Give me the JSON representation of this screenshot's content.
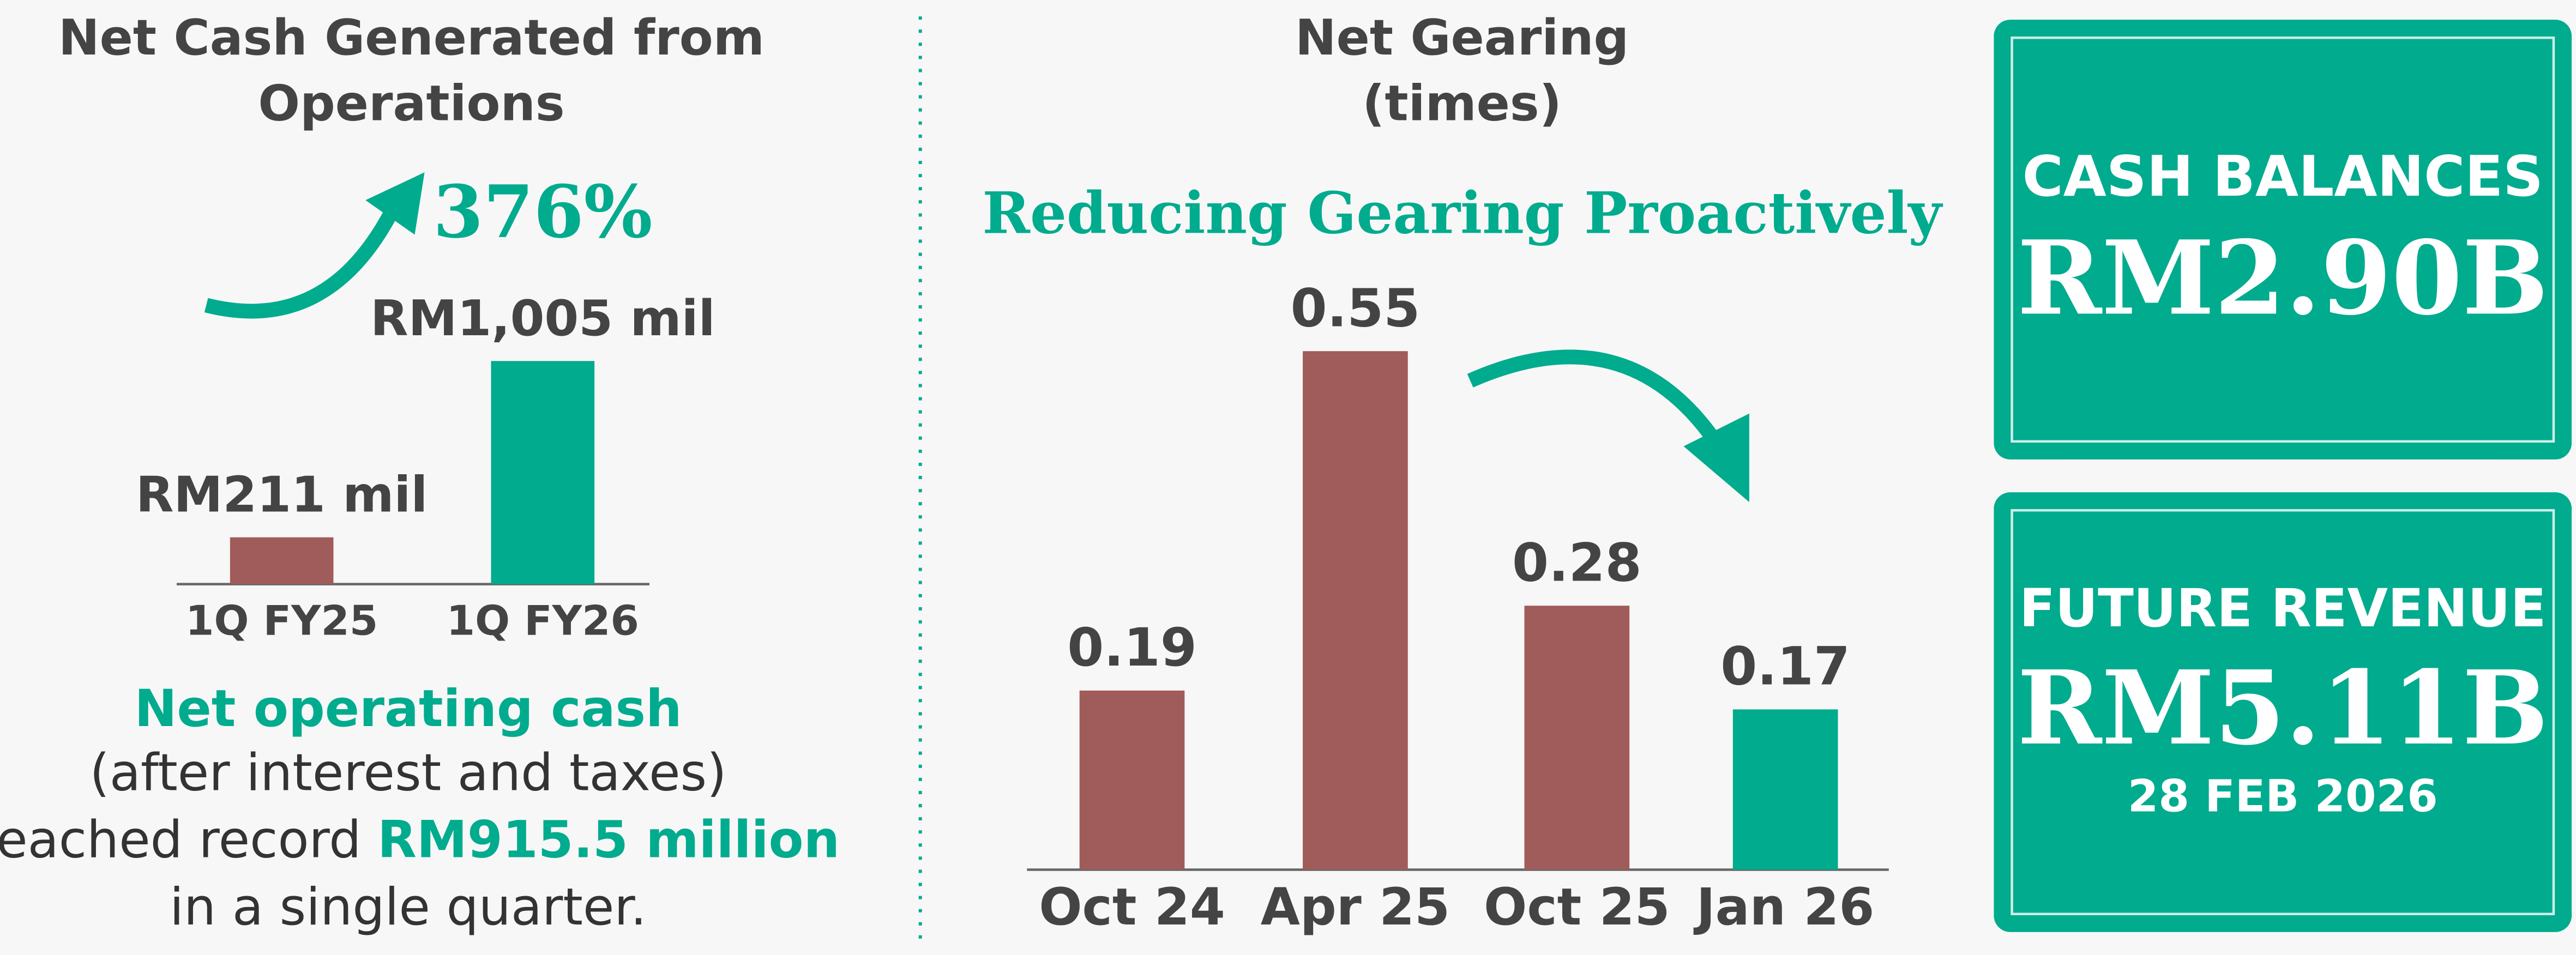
{
  "chart_data": [
    {
      "type": "bar",
      "title": [
        "Net Cash Generated from",
        "Operations"
      ],
      "annotation": "376%",
      "categories": [
        "1Q FY25",
        "1Q FY26"
      ],
      "values": [
        211,
        1005
      ],
      "value_labels": [
        "RM211 mil",
        "RM1,005 mil"
      ],
      "colors": [
        "#a05c5a",
        "#00ab8e"
      ]
    },
    {
      "type": "bar",
      "title": [
        "Net Gearing"
      ],
      "subtitle": "(times)",
      "annotation": "Reducing Gearing Proactively",
      "categories": [
        "Oct 24",
        "Apr 25",
        "Oct 25",
        "Jan 26"
      ],
      "values": [
        0.19,
        0.55,
        0.28,
        0.17
      ],
      "colors": [
        "#a05c5a",
        "#a05c5a",
        "#a05c5a",
        "#00ab8e"
      ]
    }
  ],
  "note": {
    "highlight": "Net operating cash",
    "line1": "(after interest and taxes)",
    "line2_prefix": "reached record",
    "line2_value": "RM915.5 million",
    "line3": "in a single quarter."
  },
  "cards": [
    {
      "label": "CASH BALANCES",
      "value": "RM2.90B"
    },
    {
      "label": "FUTURE REVENUE",
      "value": "RM5.11B",
      "date": "28 FEB 2026"
    }
  ]
}
